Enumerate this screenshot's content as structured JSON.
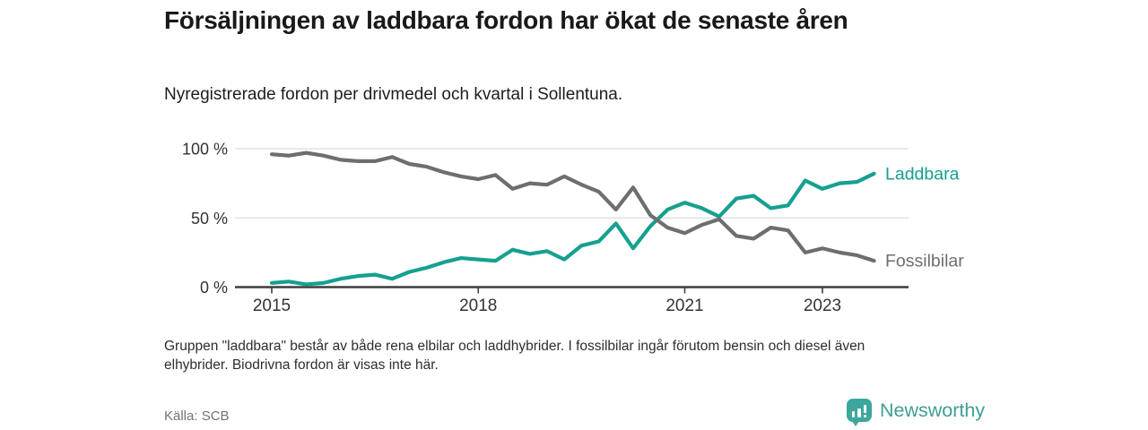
{
  "header": {
    "title": "Försäljningen av laddbara fordon har ökat de senaste åren",
    "subtitle": "Nyregistrerade fordon per drivmedel och kvartal i Sollentuna."
  },
  "footnote": {
    "line1": "Gruppen \"laddbara\" består av både rena elbilar och laddhybrider. I fossilbilar ingår förutom bensin och diesel även",
    "line2": "elhybrider. Biodrivna fordon är visas inte här."
  },
  "footer": {
    "source": "Källa: SCB",
    "brand": "Newsworthy",
    "brand_icon": "bar-chart-speech-bubble-icon"
  },
  "colors": {
    "laddbara": "#16a08f",
    "fossilbilar": "#6e6e6e",
    "grid": "#dcdcdc",
    "axis": "#3d3d3d",
    "tick_text": "#333333",
    "brand_teal": "#3da79e"
  },
  "chart_data": {
    "type": "line",
    "unit": "percent",
    "title": "Försäljningen av laddbara fordon har ökat de senaste åren",
    "subtitle": "Nyregistrerade fordon per drivmedel och kvartal i Sollentuna.",
    "ylim": [
      0,
      100
    ],
    "grid": "horizontal",
    "legend_position": "end-of-line",
    "y_ticks": [
      0,
      50,
      100
    ],
    "y_tick_labels": [
      "0 %",
      "50 %",
      "100 %"
    ],
    "x_tick_labels": [
      "2015",
      "2018",
      "2021",
      "2023"
    ],
    "x_tick_indices": [
      0,
      12,
      24,
      32
    ],
    "x": [
      "2015K1",
      "2015K2",
      "2015K3",
      "2015K4",
      "2016K1",
      "2016K2",
      "2016K3",
      "2016K4",
      "2017K1",
      "2017K2",
      "2017K3",
      "2017K4",
      "2018K1",
      "2018K2",
      "2018K3",
      "2018K4",
      "2019K1",
      "2019K2",
      "2019K3",
      "2019K4",
      "2020K1",
      "2020K2",
      "2020K3",
      "2020K4",
      "2021K1",
      "2021K2",
      "2021K3",
      "2021K4",
      "2022K1",
      "2022K2",
      "2022K3",
      "2022K4",
      "2023K1",
      "2023K2",
      "2023K3",
      "2023K4"
    ],
    "series": [
      {
        "name": "Laddbara",
        "color": "#16a08f",
        "values": [
          3,
          4,
          2,
          3,
          6,
          8,
          9,
          6,
          11,
          14,
          18,
          21,
          20,
          19,
          27,
          24,
          26,
          20,
          30,
          33,
          46,
          28,
          44,
          56,
          61,
          57,
          51,
          64,
          66,
          57,
          59,
          77,
          71,
          75,
          76,
          82
        ]
      },
      {
        "name": "Fossilbilar",
        "color": "#6e6e6e",
        "values": [
          96,
          95,
          97,
          95,
          92,
          91,
          91,
          94,
          89,
          87,
          83,
          80,
          78,
          81,
          71,
          75,
          74,
          80,
          74,
          69,
          56,
          72,
          52,
          43,
          39,
          45,
          49,
          37,
          35,
          43,
          41,
          25,
          28,
          25,
          23,
          19
        ]
      }
    ]
  }
}
